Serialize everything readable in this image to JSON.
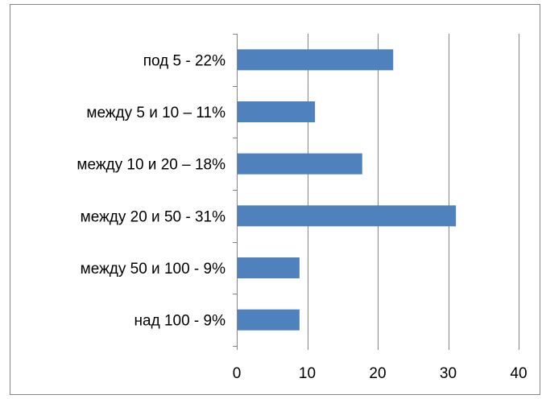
{
  "chart_data": {
    "type": "bar",
    "orientation": "horizontal",
    "categories": [
      "под 5 -  22%",
      "между 5 и 10 – 11%",
      "между 10 и 20 – 18%",
      "между 20 и 50 - 31%",
      "между 50 и 100 - 9%",
      "над 100 - 9%"
    ],
    "values": [
      22.2,
      11.1,
      17.8,
      31.1,
      8.9,
      8.9
    ],
    "xlim": [
      0,
      40
    ],
    "xticks": [
      "0",
      "10",
      "20",
      "30",
      "40"
    ],
    "grid": true,
    "legend": "none",
    "bar_color": "#4F81BD",
    "grid_color": "#868686",
    "frame_color": "#868686"
  }
}
